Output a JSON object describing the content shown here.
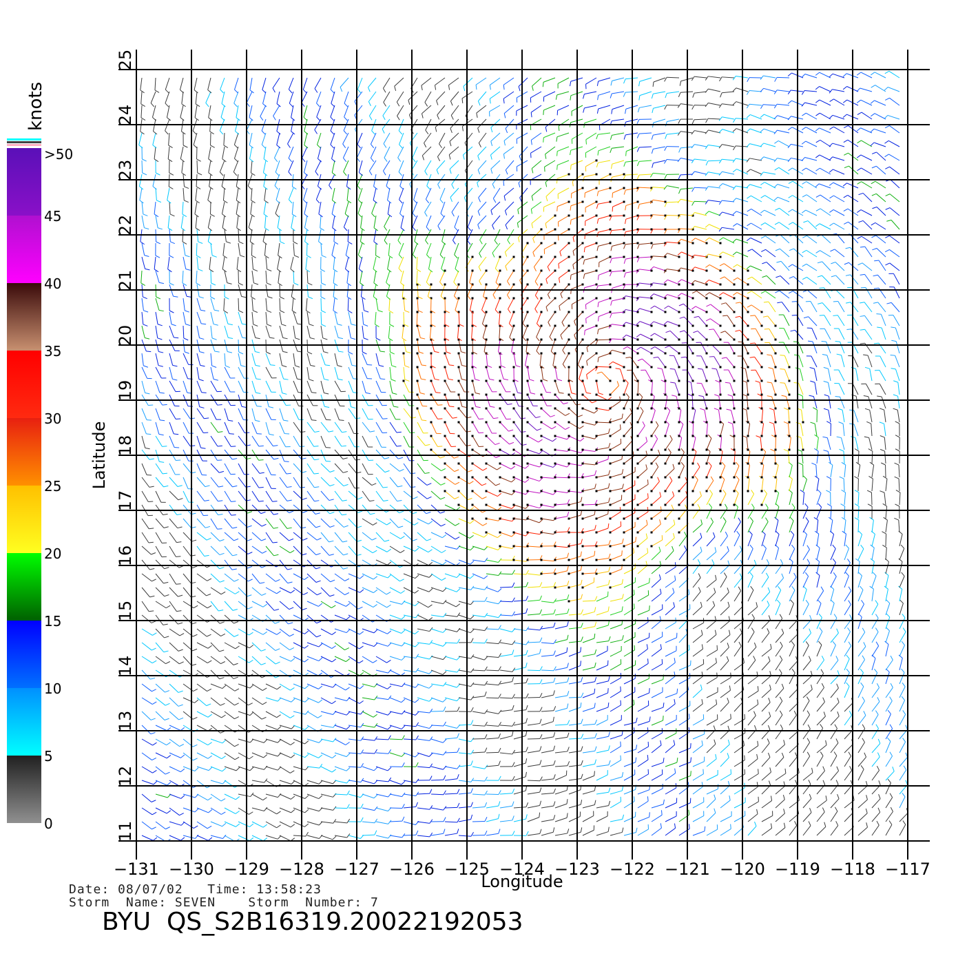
{
  "map": {
    "lon_range": [
      -131,
      -117
    ],
    "lat_range": [
      11,
      25
    ],
    "lon_ticks": [
      "-131",
      "-130",
      "-129",
      "-128",
      "-127",
      "-126",
      "-125",
      "-124",
      "-123",
      "-122",
      "-121",
      "-120",
      "-119",
      "-118",
      "-117"
    ],
    "lat_ticks": [
      "11",
      "12",
      "13",
      "14",
      "15",
      "16",
      "17",
      "18",
      "19",
      "20",
      "21",
      "22",
      "23",
      "24",
      "25"
    ],
    "xlabel": "Longitude",
    "ylabel": "Latitude",
    "storm_center": {
      "lon": -122.5,
      "lat": 19.3
    }
  },
  "colorbar": {
    "title": "knots",
    "labels": [
      ">50",
      "45",
      "40",
      "35",
      "30",
      "25",
      "20",
      "15",
      "10",
      "5",
      "0"
    ],
    "bands": [
      {
        "from": 45,
        "to": 50,
        "colors": [
          "#5a10b8",
          "#8a10c8"
        ]
      },
      {
        "from": 40,
        "to": 45,
        "colors": [
          "#b010d0",
          "#ff00ff"
        ]
      },
      {
        "from": 35,
        "to": 40,
        "colors": [
          "#3a0a0a",
          "#c89070"
        ]
      },
      {
        "from": 30,
        "to": 35,
        "colors": [
          "#ff0000",
          "#ff2a10"
        ]
      },
      {
        "from": 25,
        "to": 30,
        "colors": [
          "#e82010",
          "#ff9000"
        ]
      },
      {
        "from": 20,
        "to": 25,
        "colors": [
          "#ffc000",
          "#ffff20"
        ]
      },
      {
        "from": 15,
        "to": 20,
        "colors": [
          "#00ff00",
          "#006000"
        ]
      },
      {
        "from": 10,
        "to": 15,
        "colors": [
          "#0000ff",
          "#0070ff"
        ]
      },
      {
        "from": 5,
        "to": 10,
        "colors": [
          "#0090ff",
          "#00ffff"
        ]
      },
      {
        "from": 0,
        "to": 5,
        "colors": [
          "#202020",
          "#909090"
        ]
      }
    ],
    "caps": [
      "#00ffff",
      "#404040",
      "#ffb0c0"
    ]
  },
  "info": {
    "date_line": "Date: 08/07/02   Time: 13:58:23",
    "storm_line": "Storm  Name: SEVEN    Storm  Number: 7",
    "file_id": "BYU  QS_S2B16319.20022192053"
  }
}
